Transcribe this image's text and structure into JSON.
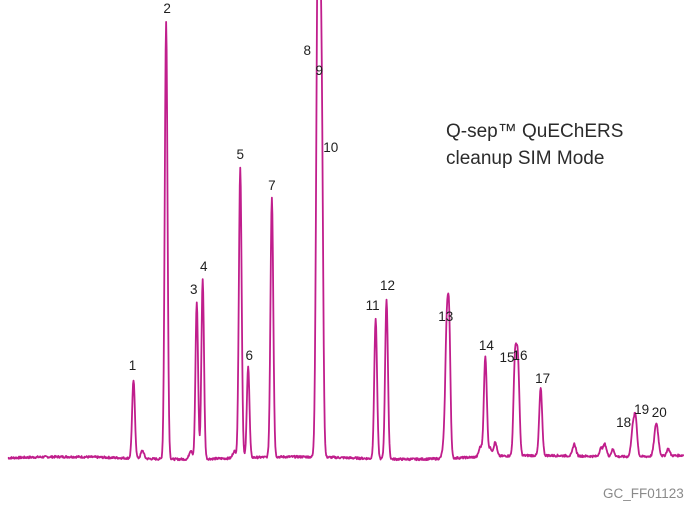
{
  "chart_data": {
    "type": "line",
    "title": "",
    "xlabel": "",
    "ylabel": "",
    "series_color": "#c01e8c",
    "grid": false,
    "legend": "none",
    "annotation": [
      "Q-sep™ QuEChERS",
      "cleanup SIM Mode"
    ],
    "xlim": [
      0,
      684
    ],
    "ylim": [
      0,
      440
    ],
    "baseline": 10,
    "peaks": [
      {
        "label": "1",
        "x": 127,
        "height": 78,
        "width": 1.4
      },
      {
        "label": "2",
        "x": 160,
        "height": 437,
        "width": 1.4
      },
      {
        "label": "3",
        "x": 191,
        "height": 157,
        "width": 1.3
      },
      {
        "label": "4",
        "x": 197,
        "height": 180,
        "width": 1.3
      },
      {
        "label": "5",
        "x": 235,
        "height": 290,
        "width": 1.4
      },
      {
        "label": "6",
        "x": 243,
        "height": 92,
        "width": 1.3
      },
      {
        "label": "7",
        "x": 267,
        "height": 260,
        "width": 1.4
      },
      {
        "label": "8",
        "x": 313,
        "height": 345,
        "width": 1.5
      },
      {
        "label": "9",
        "x": 315,
        "height": 375,
        "width": 1.5
      },
      {
        "label": "10",
        "x": 317.5,
        "height": 297,
        "width": 1.4
      },
      {
        "label": "11",
        "x": 372,
        "height": 140,
        "width": 1.4
      },
      {
        "label": "12",
        "x": 383,
        "height": 160,
        "width": 1.4
      },
      {
        "label": "13",
        "x": 444,
        "height": 129,
        "width": 1.5
      },
      {
        "label": "",
        "x": 446.5,
        "height": 116,
        "width": 1.3
      },
      {
        "label": "14",
        "x": 483,
        "height": 100,
        "width": 1.5
      },
      {
        "label": "15",
        "x": 513,
        "height": 94,
        "width": 1.5
      },
      {
        "label": "16",
        "x": 516,
        "height": 90,
        "width": 1.5
      },
      {
        "label": "17",
        "x": 539,
        "height": 67,
        "width": 1.5
      },
      {
        "label": "18",
        "x": 632,
        "height": 25,
        "width": 1.6
      },
      {
        "label": "19",
        "x": 635,
        "height": 38,
        "width": 1.6
      },
      {
        "label": "20",
        "x": 656,
        "height": 33,
        "width": 2.0
      }
    ],
    "minor_peaks": [
      {
        "x": 136,
        "height": 8
      },
      {
        "x": 185,
        "height": 9
      },
      {
        "x": 229,
        "height": 7
      },
      {
        "x": 441,
        "height": 12
      },
      {
        "x": 478,
        "height": 10
      },
      {
        "x": 488,
        "height": 8
      },
      {
        "x": 493,
        "height": 14
      },
      {
        "x": 573,
        "height": 12
      },
      {
        "x": 600,
        "height": 8
      },
      {
        "x": 604,
        "height": 12
      },
      {
        "x": 612,
        "height": 7
      },
      {
        "x": 668,
        "height": 7
      }
    ]
  },
  "footer": {
    "code": "GC_FF01123"
  }
}
